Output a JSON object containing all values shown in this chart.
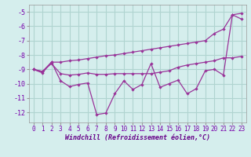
{
  "x": [
    0,
    1,
    2,
    3,
    4,
    5,
    6,
    7,
    8,
    9,
    10,
    11,
    12,
    13,
    14,
    15,
    16,
    17,
    18,
    19,
    20,
    21,
    22,
    23
  ],
  "line1": [
    -9.0,
    -9.15,
    -8.5,
    -8.5,
    -8.4,
    -8.35,
    -8.25,
    -8.15,
    -8.05,
    -8.0,
    -7.9,
    -7.8,
    -7.7,
    -7.6,
    -7.5,
    -7.4,
    -7.3,
    -7.2,
    -7.1,
    -7.0,
    -6.5,
    -6.2,
    -5.2,
    -5.1
  ],
  "line2": [
    -9.0,
    -9.15,
    -8.6,
    -9.3,
    -9.4,
    -9.35,
    -9.25,
    -9.35,
    -9.35,
    -9.3,
    -9.3,
    -9.3,
    -9.3,
    -9.3,
    -9.2,
    -9.1,
    -8.85,
    -8.7,
    -8.6,
    -8.5,
    -8.4,
    -8.2,
    -8.2,
    -8.1
  ],
  "line3": [
    -9.0,
    -9.25,
    -8.5,
    -9.8,
    -10.2,
    -10.05,
    -9.95,
    -12.15,
    -12.05,
    -10.7,
    -9.8,
    -10.4,
    -10.05,
    -8.6,
    -10.25,
    -10.0,
    -9.75,
    -10.7,
    -10.35,
    -9.1,
    -9.0,
    -9.4,
    -5.2,
    -5.5
  ],
  "line_color": "#993399",
  "bg_color": "#d5eeed",
  "grid_color": "#b0d4d0",
  "xlabel": "Windchill (Refroidissement éolien,°C)",
  "xlim": [
    -0.5,
    23.5
  ],
  "ylim": [
    -12.7,
    -4.5
  ],
  "yticks": [
    -12,
    -11,
    -10,
    -9,
    -8,
    -7,
    -6,
    -5
  ],
  "xticks": [
    0,
    1,
    2,
    3,
    4,
    5,
    6,
    7,
    8,
    9,
    10,
    11,
    12,
    13,
    14,
    15,
    16,
    17,
    18,
    19,
    20,
    21,
    22,
    23
  ]
}
